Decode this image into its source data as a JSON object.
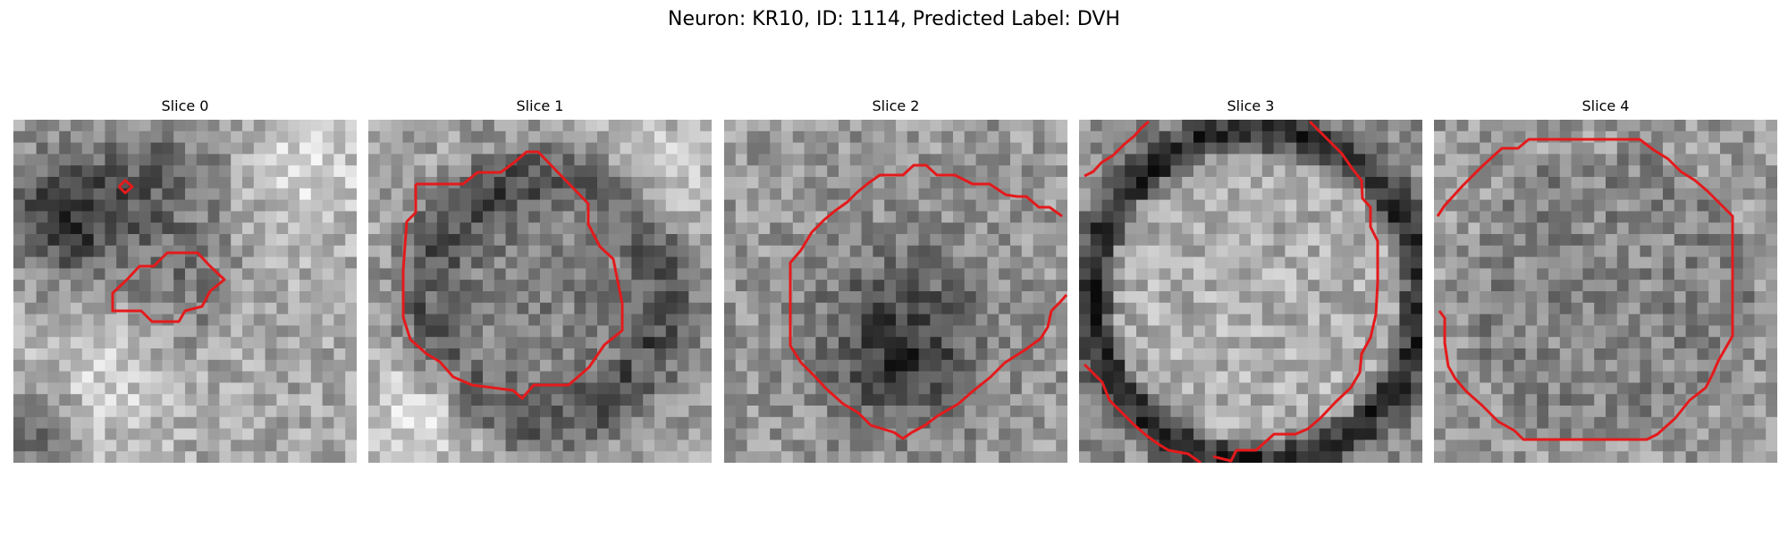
{
  "figure": {
    "title": "Neuron: KR10, ID: 1114, Predicted Label: DVH",
    "contour_color": "#e41a1c",
    "panels": [
      {
        "title": "Slice 0",
        "pattern": "blob-left",
        "seed": 11
      },
      {
        "title": "Slice 1",
        "pattern": "cell-center",
        "seed": 23
      },
      {
        "title": "Slice 2",
        "pattern": "dark-center",
        "seed": 37
      },
      {
        "title": "Slice 3",
        "pattern": "bright-cell",
        "seed": 41
      },
      {
        "title": "Slice 4",
        "pattern": "noisy-cell",
        "seed": 53
      }
    ]
  }
}
